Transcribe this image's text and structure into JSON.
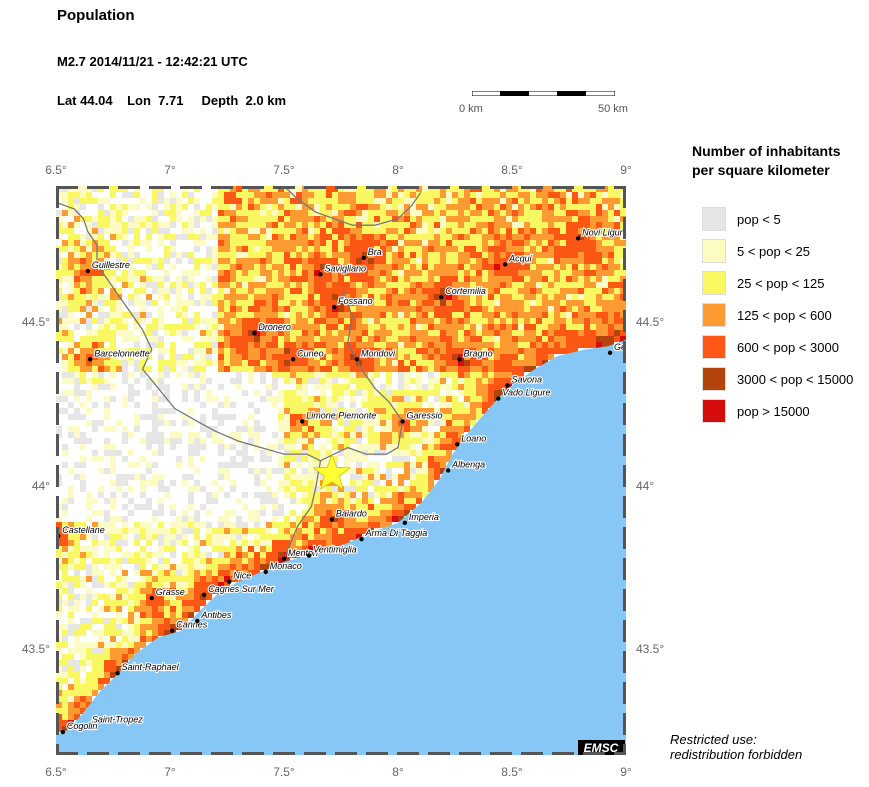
{
  "header": {
    "title": "Population",
    "event": "M2.7  2014/11/21 - 12:42:21 UTC",
    "location": "Lat 44.04    Lon  7.71     Depth  2.0 km"
  },
  "scale_bar": {
    "left_label": "0 km",
    "right_label": "50 km"
  },
  "map": {
    "lon_range": [
      6.5,
      9.0
    ],
    "lat_range": [
      43.18,
      44.92
    ],
    "lon_ticks": [
      "6.5°",
      "7°",
      "7.5°",
      "8°",
      "8.5°",
      "9°"
    ],
    "lat_ticks": [
      "44.5°",
      "44°",
      "43.5°"
    ],
    "lon_tick_values": [
      6.5,
      7.0,
      7.5,
      8.0,
      8.5,
      9.0
    ],
    "lat_tick_values": [
      44.5,
      44.0,
      43.5
    ],
    "sea_color": "#87c7f5",
    "land_color": "#ffffff",
    "border_color": "#777777",
    "epicenter": {
      "lon": 7.71,
      "lat": 44.04,
      "color": "#ffff33"
    },
    "watermark": "EMSC",
    "cities": [
      {
        "name": "Guillestre",
        "lon": 6.64,
        "lat": 44.66
      },
      {
        "name": "Barcelonnette",
        "lon": 6.65,
        "lat": 44.39
      },
      {
        "name": "Castellane",
        "lon": 6.51,
        "lat": 43.85
      },
      {
        "name": "Saint-Tropez",
        "lon": 6.64,
        "lat": 43.27
      },
      {
        "name": "Cogolin",
        "lon": 6.53,
        "lat": 43.25
      },
      {
        "name": "Saint-Raphael",
        "lon": 6.77,
        "lat": 43.43
      },
      {
        "name": "Grasse",
        "lon": 6.92,
        "lat": 43.66
      },
      {
        "name": "Cannes",
        "lon": 7.01,
        "lat": 43.56
      },
      {
        "name": "Antibes",
        "lon": 7.12,
        "lat": 43.59
      },
      {
        "name": "Cagnes Sur Mer",
        "lon": 7.15,
        "lat": 43.67
      },
      {
        "name": "Nice",
        "lon": 7.26,
        "lat": 43.71
      },
      {
        "name": "Monaco",
        "lon": 7.42,
        "lat": 43.74
      },
      {
        "name": "Menton",
        "lon": 7.5,
        "lat": 43.78
      },
      {
        "name": "Ventimiglia",
        "lon": 7.61,
        "lat": 43.79
      },
      {
        "name": "Arma Di Taggia",
        "lon": 7.84,
        "lat": 43.84
      },
      {
        "name": "Imperia",
        "lon": 8.03,
        "lat": 43.89
      },
      {
        "name": "Baiardo",
        "lon": 7.71,
        "lat": 43.9
      },
      {
        "name": "Albenga",
        "lon": 8.22,
        "lat": 44.05
      },
      {
        "name": "Loano",
        "lon": 8.26,
        "lat": 44.13
      },
      {
        "name": "Garessio",
        "lon": 8.02,
        "lat": 44.2
      },
      {
        "name": "Limone Piemonte",
        "lon": 7.58,
        "lat": 44.2
      },
      {
        "name": "Vado Ligure",
        "lon": 8.44,
        "lat": 44.27
      },
      {
        "name": "Savona",
        "lon": 8.48,
        "lat": 44.31
      },
      {
        "name": "Bragno",
        "lon": 8.27,
        "lat": 44.39
      },
      {
        "name": "Dronero",
        "lon": 7.37,
        "lat": 44.47
      },
      {
        "name": "Cuneo",
        "lon": 7.54,
        "lat": 44.39
      },
      {
        "name": "Mondovi",
        "lon": 7.82,
        "lat": 44.39
      },
      {
        "name": "Fossano",
        "lon": 7.72,
        "lat": 44.55
      },
      {
        "name": "Cortemilia",
        "lon": 8.19,
        "lat": 44.58
      },
      {
        "name": "Savigliano",
        "lon": 7.66,
        "lat": 44.65
      },
      {
        "name": "Bra",
        "lon": 7.85,
        "lat": 44.7
      },
      {
        "name": "Acqui",
        "lon": 8.47,
        "lat": 44.68
      },
      {
        "name": "Novi Ligure",
        "lon": 8.79,
        "lat": 44.76
      },
      {
        "name": "Genova",
        "lon": 8.93,
        "lat": 44.41
      }
    ]
  },
  "legend": {
    "title_line1": "Number of inhabitants",
    "title_line2": "per square kilometer",
    "items": [
      {
        "label": "pop < 5",
        "color": "#e6e6e6"
      },
      {
        "label": "5 < pop < 25",
        "color": "#fdfbc4"
      },
      {
        "label": "25 < pop < 125",
        "color": "#f9f862"
      },
      {
        "label": "125 < pop < 600",
        "color": "#fd9a32"
      },
      {
        "label": "600 < pop < 3000",
        "color": "#fd5716"
      },
      {
        "label": "3000 < pop < 15000",
        "color": "#b4440b"
      },
      {
        "label": "pop > 15000",
        "color": "#d60b0b"
      }
    ]
  },
  "footer": {
    "restricted_line1": "Restricted use:",
    "restricted_line2": "redistribution forbidden"
  }
}
